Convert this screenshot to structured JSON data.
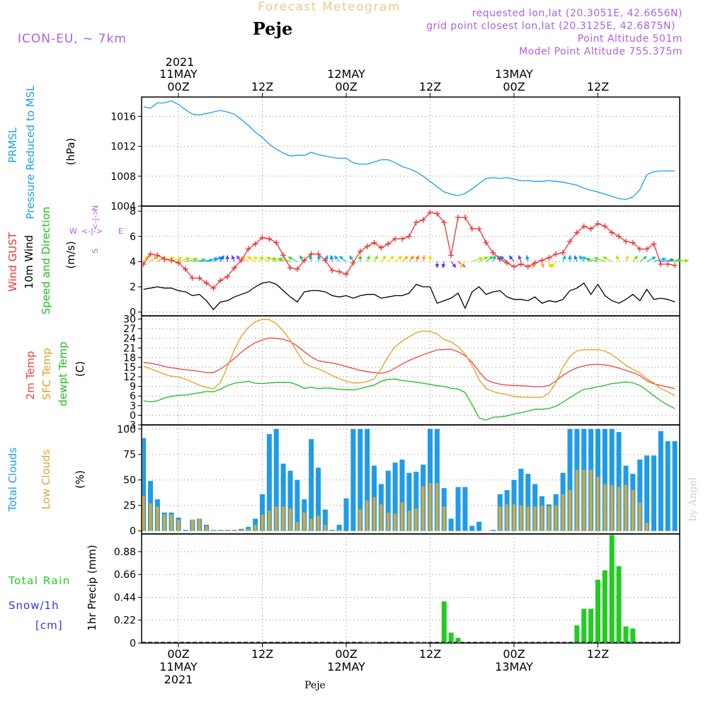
{
  "header": {
    "forecast_title": "Forecast Meteogram",
    "model": "ICON-EU, ~ 7km",
    "location": "Peje",
    "requested": "requested lon,lat (20.3051E, 42.6656N)",
    "grid_point": "grid point closest lon,lat (20.3125E, 42.6875N)",
    "point_altitude": "Point Altitude 501m",
    "model_altitude": "Model Point Altitude 755.375m"
  },
  "time_axis": {
    "top_year": "2021",
    "ticks": [
      {
        "t": 0,
        "top": [
          "11MAY",
          "00Z"
        ],
        "bottom": [
          "00Z",
          "11MAY",
          "2021"
        ]
      },
      {
        "t": 12,
        "top": [
          "",
          "12Z"
        ],
        "bottom": [
          "12Z"
        ]
      },
      {
        "t": 24,
        "top": [
          "12MAY",
          "00Z"
        ],
        "bottom": [
          "00Z",
          "12MAY"
        ]
      },
      {
        "t": 36,
        "top": [
          "",
          "12Z"
        ],
        "bottom": [
          "12Z"
        ]
      },
      {
        "t": 48,
        "top": [
          "13MAY",
          "00Z"
        ],
        "bottom": [
          "00Z",
          "13MAY"
        ]
      },
      {
        "t": 60,
        "top": [
          "",
          "12Z"
        ],
        "bottom": [
          "12Z"
        ]
      }
    ],
    "bottom_location": "Peje"
  },
  "watermark": "by Angel",
  "colors": {
    "pressure": "#1f9fe0",
    "gust": "#ee3333",
    "wind10m": "#000000",
    "direction_label": "#22bb22",
    "temp2m": "#ee4444",
    "sfc": "#e0a020",
    "dewpt": "#22bb22",
    "total_clouds": "#1f9be8",
    "low_clouds": "#d8a838",
    "rain": "#22cc22",
    "snow": "#3333ee",
    "header_gold": "#ecc98a",
    "header_purple": "#b060e0"
  },
  "chart_data": [
    {
      "type": "line",
      "name": "pressure",
      "labels": [
        "PRMSL",
        "Pressure Reduced to MSL",
        "(hPa)"
      ],
      "x": [
        -5,
        -4,
        -3,
        -2,
        -1,
        0,
        1,
        2,
        3,
        4,
        5,
        6,
        7,
        8,
        9,
        10,
        11,
        12,
        13,
        14,
        15,
        16,
        17,
        18,
        19,
        20,
        21,
        22,
        23,
        24,
        25,
        26,
        27,
        28,
        29,
        30,
        31,
        32,
        33,
        34,
        35,
        36,
        37,
        38,
        39,
        40,
        41,
        42,
        43,
        44,
        45,
        46,
        47,
        48,
        49,
        50,
        51,
        52,
        53,
        54,
        55,
        56,
        57,
        58,
        59,
        60,
        61,
        62,
        63,
        64,
        65,
        66,
        67,
        68,
        69,
        70,
        71
      ],
      "values": [
        1017.3,
        1017.1,
        1017.8,
        1017.8,
        1018.1,
        1017.6,
        1016.9,
        1016.3,
        1016.2,
        1016.4,
        1016.6,
        1016.8,
        1016.6,
        1016.3,
        1015.6,
        1014.8,
        1013.9,
        1013.2,
        1012.3,
        1011.6,
        1011.1,
        1010.7,
        1010.8,
        1010.8,
        1011.2,
        1010.9,
        1010.7,
        1010.5,
        1010.4,
        1010.4,
        1009.8,
        1009.6,
        1009.6,
        1009.9,
        1010.2,
        1010.2,
        1009.8,
        1009.3,
        1009.0,
        1008.6,
        1008.0,
        1007.3,
        1006.6,
        1005.9,
        1005.6,
        1005.4,
        1005.7,
        1006.3,
        1007.0,
        1007.7,
        1007.8,
        1007.7,
        1007.8,
        1007.6,
        1007.4,
        1007.4,
        1007.3,
        1007.3,
        1007.4,
        1007.3,
        1007.2,
        1007.0,
        1006.8,
        1006.4,
        1006.1,
        1005.9,
        1005.6,
        1005.3,
        1005.0,
        1004.9,
        1005.2,
        1006.2,
        1008.2,
        1008.6,
        1008.7,
        1008.7,
        1008.7
      ],
      "yticks": [
        1004,
        1008,
        1012,
        1016
      ],
      "ylim": [
        1004,
        1018.6
      ]
    },
    {
      "type": "line",
      "name": "wind",
      "labels": [
        "Wind GUST",
        "10m Wind",
        "Speed and Direction",
        "(m/s)"
      ],
      "compass": {
        "n": "N",
        "s": "S",
        "w": "W",
        "e": "E"
      },
      "yticks": [
        0,
        2,
        4,
        6,
        8
      ],
      "ylim": [
        -0.3,
        8.4
      ],
      "x": [
        -5,
        -4,
        -3,
        -2,
        -1,
        0,
        1,
        2,
        3,
        4,
        5,
        6,
        7,
        8,
        9,
        10,
        11,
        12,
        13,
        14,
        15,
        16,
        17,
        18,
        19,
        20,
        21,
        22,
        23,
        24,
        25,
        26,
        27,
        28,
        29,
        30,
        31,
        32,
        33,
        34,
        35,
        36,
        37,
        38,
        39,
        40,
        41,
        42,
        43,
        44,
        45,
        46,
        47,
        48,
        49,
        50,
        51,
        52,
        53,
        54,
        55,
        56,
        57,
        58,
        59,
        60,
        61,
        62,
        63,
        64,
        65,
        66,
        67,
        68,
        69,
        70,
        71
      ],
      "gust": [
        3.8,
        4.6,
        4.5,
        4.2,
        4.1,
        3.9,
        3.4,
        2.7,
        2.7,
        2.3,
        1.9,
        2.5,
        2.8,
        3.5,
        4.1,
        5.0,
        5.4,
        5.9,
        5.8,
        5.5,
        4.5,
        3.5,
        3.4,
        4.1,
        4.6,
        4.6,
        4.1,
        3.3,
        3.2,
        3.0,
        3.9,
        4.8,
        5.2,
        5.5,
        5.1,
        5.4,
        5.8,
        5.8,
        6.0,
        7.1,
        7.3,
        7.9,
        7.8,
        7.1,
        4.5,
        7.5,
        7.5,
        6.6,
        6.6,
        5.5,
        4.7,
        4.2,
        3.9,
        3.6,
        3.8,
        3.6,
        3.9,
        4.1,
        4.3,
        4.6,
        4.7,
        5.6,
        6.3,
        6.8,
        6.6,
        7.0,
        6.8,
        6.3,
        6.0,
        5.6,
        5.5,
        5.0,
        5.0,
        5.4,
        3.8,
        3.8,
        3.7
      ],
      "wind10m": [
        1.8,
        1.9,
        2.0,
        1.9,
        1.9,
        1.7,
        1.6,
        1.3,
        1.4,
        0.9,
        0.2,
        0.8,
        0.9,
        1.2,
        1.4,
        1.6,
        2.0,
        2.3,
        2.4,
        2.2,
        1.7,
        1.2,
        0.8,
        1.6,
        1.7,
        1.7,
        1.6,
        1.3,
        1.2,
        1.3,
        1.1,
        1.3,
        1.4,
        1.4,
        1.1,
        1.2,
        1.3,
        1.3,
        1.5,
        2.2,
        2.0,
        2.0,
        0.7,
        0.9,
        1.1,
        1.5,
        0.3,
        1.6,
        2.0,
        1.4,
        1.6,
        1.7,
        1.2,
        1.0,
        1.0,
        0.9,
        1.2,
        0.7,
        0.9,
        0.8,
        1.0,
        1.7,
        1.9,
        2.3,
        1.4,
        2.2,
        1.3,
        0.9,
        0.7,
        1.0,
        1.4,
        0.9,
        1.8,
        1.0,
        1.1,
        1.0,
        0.8
      ],
      "direction_deg": [
        70,
        60,
        55,
        45,
        40,
        35,
        30,
        20,
        15,
        35,
        50,
        75,
        90,
        100,
        110,
        120,
        125,
        130,
        135,
        135,
        145,
        150,
        130,
        110,
        95,
        85,
        80,
        95,
        110,
        120,
        105,
        90,
        80,
        75,
        70,
        65,
        60,
        65,
        70,
        80,
        85,
        90,
        270,
        265,
        290,
        300,
        250,
        40,
        50,
        60,
        80,
        100,
        120,
        110,
        100,
        95,
        260,
        275,
        280,
        250,
        80,
        90,
        100,
        110,
        130,
        150,
        140,
        130,
        100,
        80,
        70,
        60,
        50,
        30,
        20,
        15,
        10
      ],
      "direction_color": [
        "#ffcc00",
        "#ffb000",
        "#ff9900",
        "#ffcc00",
        "#e0e000",
        "#b0e000",
        "#80e000",
        "#40d040",
        "#00c0c0",
        "#00a0ff",
        "#0080ff",
        "#0060ff",
        "#3a40ff",
        "#6040ff",
        "#8040ff",
        "#ffcc00",
        "#ffd000",
        "#e8e000",
        "#c0e000",
        "#a0e000",
        "#80e000",
        "#60d000",
        "#40d040",
        "#20c080",
        "#00c0c0",
        "#00b0e0",
        "#00a0ff",
        "#0080ff",
        "#20a0ff",
        "#00c0c0",
        "#00c0a0",
        "#30d030",
        "#60e000",
        "#90e000",
        "#c0e000",
        "#e0e000",
        "#ffd000",
        "#ffb000",
        "#ff9000",
        "#ff7000",
        "#ffa000",
        "#ffcc00",
        "#4040ff",
        "#3030ff",
        "#8020ff",
        "#e000e0",
        "#ffcc00",
        "#c0e000",
        "#80e000",
        "#40d040",
        "#00c0c0",
        "#00a0ff",
        "#0080ff",
        "#3a40ff",
        "#6040ff",
        "#0090ff",
        "#ff9900",
        "#ffaa00",
        "#ffcc00",
        "#e0e000",
        "#00c0c0",
        "#00a0ff",
        "#0080ff",
        "#20a0ff",
        "#00c0c0",
        "#30d030",
        "#60e000",
        "#90e000",
        "#c0e000",
        "#e0e000",
        "#80e000",
        "#40d040",
        "#00c0a0",
        "#00b0ff",
        "#0090ff",
        "#30d030",
        "#80e000"
      ]
    },
    {
      "type": "line",
      "name": "temperature",
      "labels": [
        "2m Temp",
        "SFC Temp",
        "dewpt Temp",
        "(C)"
      ],
      "yticks": [
        -3,
        0,
        3,
        6,
        9,
        12,
        15,
        18,
        21,
        24,
        27,
        30
      ],
      "ylim": [
        -3,
        31
      ],
      "x": [
        -5,
        -4,
        -3,
        -2,
        -1,
        0,
        1,
        2,
        3,
        4,
        5,
        6,
        7,
        8,
        9,
        10,
        11,
        12,
        13,
        14,
        15,
        16,
        17,
        18,
        19,
        20,
        21,
        22,
        23,
        24,
        25,
        26,
        27,
        28,
        29,
        30,
        31,
        32,
        33,
        34,
        35,
        36,
        37,
        38,
        39,
        40,
        41,
        42,
        43,
        44,
        45,
        46,
        47,
        48,
        49,
        50,
        51,
        52,
        53,
        54,
        55,
        56,
        57,
        58,
        59,
        60,
        61,
        62,
        63,
        64,
        65,
        66,
        67,
        68,
        69,
        70,
        71
      ],
      "temp2m": [
        16.5,
        16.2,
        15.8,
        15.2,
        14.8,
        14.5,
        14.2,
        14.0,
        13.7,
        13.3,
        13.3,
        14.4,
        15.9,
        17.7,
        19.7,
        21.3,
        22.6,
        23.5,
        24.1,
        24.0,
        23.7,
        23.0,
        21.6,
        19.8,
        18.2,
        17.0,
        16.6,
        16.3,
        15.8,
        15.2,
        14.6,
        14.0,
        13.6,
        13.3,
        13.1,
        13.6,
        14.7,
        16.0,
        17.1,
        18.0,
        18.9,
        19.6,
        20.4,
        20.5,
        20.6,
        19.8,
        18.6,
        16.5,
        13.6,
        11.1,
        10.2,
        9.7,
        9.4,
        9.3,
        9.2,
        9.1,
        8.9,
        8.9,
        9.3,
        10.7,
        12.4,
        13.8,
        14.8,
        15.4,
        15.8,
        15.9,
        15.7,
        15.3,
        14.7,
        14.0,
        13.3,
        12.4,
        10.8,
        9.8,
        9.3,
        8.8,
        8.3
      ],
      "sfc": [
        15.3,
        14.5,
        13.7,
        12.8,
        12.2,
        11.9,
        11.3,
        10.3,
        9.4,
        8.7,
        8.2,
        10.2,
        15.0,
        20.4,
        24.7,
        27.4,
        29.2,
        29.9,
        29.8,
        28.6,
        26.3,
        23.4,
        19.6,
        16.3,
        15.2,
        14.5,
        13.5,
        12.4,
        11.4,
        10.6,
        10.1,
        10.1,
        10.5,
        11.4,
        14.5,
        18.4,
        21.4,
        23.1,
        24.5,
        25.7,
        26.3,
        26.1,
        25.4,
        23.6,
        22.9,
        21.4,
        19.1,
        15.6,
        11.1,
        8.3,
        7.4,
        6.8,
        6.5,
        5.9,
        5.6,
        5.6,
        5.5,
        5.6,
        6.9,
        10.2,
        15.0,
        18.4,
        20.1,
        20.5,
        20.4,
        20.5,
        20.0,
        18.9,
        17.3,
        15.6,
        14.3,
        13.2,
        11.4,
        10.1,
        8.3,
        7.3,
        6.2
      ],
      "dewpt": [
        4.5,
        4.2,
        4.5,
        5.4,
        5.9,
        6.2,
        6.3,
        6.7,
        7.0,
        7.4,
        7.3,
        8.1,
        9.2,
        10.0,
        10.3,
        10.6,
        10.0,
        9.9,
        10.1,
        10.2,
        10.3,
        10.2,
        9.5,
        8.4,
        8.7,
        8.3,
        8.5,
        8.4,
        8.1,
        8.0,
        7.9,
        8.3,
        8.9,
        9.4,
        10.6,
        11.2,
        11.3,
        10.8,
        10.6,
        10.3,
        10.0,
        9.6,
        9.2,
        9.0,
        8.4,
        8.2,
        7.1,
        3.3,
        -0.8,
        -1.5,
        -0.6,
        -0.5,
        -0.2,
        0.4,
        0.8,
        1.3,
        1.9,
        1.9,
        2.1,
        2.8,
        4.1,
        5.5,
        6.9,
        8.1,
        8.4,
        8.9,
        9.3,
        9.9,
        10.1,
        10.4,
        10.1,
        9.3,
        7.8,
        6.1,
        4.5,
        3.2,
        2.1
      ]
    },
    {
      "type": "bar",
      "name": "clouds",
      "labels": [
        "Total Clouds",
        "Low Clouds",
        "(%)"
      ],
      "yticks": [
        0,
        25,
        50,
        75,
        100
      ],
      "ylim": [
        -3,
        104
      ],
      "x": [
        -5,
        -4,
        -3,
        -2,
        -1,
        0,
        1,
        2,
        3,
        4,
        5,
        6,
        7,
        8,
        9,
        10,
        11,
        12,
        13,
        14,
        15,
        16,
        17,
        18,
        19,
        20,
        21,
        22,
        23,
        24,
        25,
        26,
        27,
        28,
        29,
        30,
        31,
        32,
        33,
        34,
        35,
        36,
        37,
        38,
        39,
        40,
        41,
        42,
        43,
        44,
        45,
        46,
        47,
        48,
        49,
        50,
        51,
        52,
        53,
        54,
        55,
        56,
        57,
        58,
        59,
        60,
        61,
        62,
        63,
        64,
        65,
        66,
        67,
        68,
        69,
        70,
        71
      ],
      "total": [
        91,
        49,
        31,
        18,
        18,
        13,
        1,
        11,
        12,
        6,
        1,
        1,
        1,
        1,
        2,
        4,
        12,
        36,
        95,
        100,
        66,
        59,
        50,
        31,
        90,
        62,
        21,
        1,
        6,
        32,
        100,
        100,
        100,
        64,
        46,
        59,
        67,
        70,
        57,
        58,
        65,
        100,
        100,
        42,
        12,
        43,
        43,
        5,
        9,
        0,
        1,
        36,
        40,
        50,
        61,
        56,
        46,
        34,
        26,
        36,
        57,
        100,
        100,
        100,
        100,
        100,
        100,
        100,
        97,
        64,
        56,
        70,
        74,
        74,
        98,
        88,
        88
      ],
      "low": [
        34,
        27,
        24,
        16,
        16,
        11,
        0,
        11,
        12,
        5,
        1,
        1,
        1,
        1,
        1,
        2,
        6,
        16,
        20,
        24,
        24,
        22,
        9,
        18,
        12,
        15,
        6,
        0,
        1,
        0,
        0,
        21,
        30,
        33,
        26,
        18,
        17,
        28,
        20,
        22,
        44,
        47,
        47,
        24,
        0,
        0,
        0,
        0,
        0,
        0,
        0,
        24,
        26,
        26,
        25,
        24,
        24,
        25,
        24,
        25,
        36,
        40,
        60,
        60,
        60,
        53,
        46,
        45,
        43,
        45,
        40,
        28,
        8,
        0,
        0,
        0,
        0
      ]
    },
    {
      "type": "bar",
      "name": "precip",
      "labels": [
        "Total Rain",
        "Snow/1h",
        "[cm]",
        "1hr Precip (mm)"
      ],
      "yticks": [
        0,
        0.22,
        0.44,
        0.66,
        0.88
      ],
      "ylim": [
        0,
        1.05
      ],
      "x": [
        -5,
        -4,
        -3,
        -2,
        -1,
        0,
        1,
        2,
        3,
        4,
        5,
        6,
        7,
        8,
        9,
        10,
        11,
        12,
        13,
        14,
        15,
        16,
        17,
        18,
        19,
        20,
        21,
        22,
        23,
        24,
        25,
        26,
        27,
        28,
        29,
        30,
        31,
        32,
        33,
        34,
        35,
        36,
        37,
        38,
        39,
        40,
        41,
        42,
        43,
        44,
        45,
        46,
        47,
        48,
        49,
        50,
        51,
        52,
        53,
        54,
        55,
        56,
        57,
        58,
        59,
        60,
        61,
        62,
        63,
        64,
        65,
        66,
        67,
        68,
        69,
        70,
        71
      ],
      "rain": [
        0,
        0,
        0,
        0,
        0,
        0,
        0,
        0,
        0,
        0,
        0,
        0,
        0,
        0,
        0,
        0,
        0,
        0,
        0,
        0,
        0,
        0,
        0,
        0,
        0,
        0,
        0,
        0,
        0,
        0,
        0,
        0,
        0.01,
        0.01,
        0,
        0,
        0,
        0,
        0,
        0.005,
        0.01,
        0,
        0,
        0.4,
        0.1,
        0.05,
        0,
        0,
        0,
        0,
        0,
        0,
        0,
        0,
        0,
        0,
        0,
        0,
        0,
        0,
        0,
        0,
        0.17,
        0.33,
        0.33,
        0.61,
        0.7,
        1.04,
        0.74,
        0.16,
        0.14,
        0,
        0,
        0,
        0,
        0,
        0
      ]
    }
  ]
}
